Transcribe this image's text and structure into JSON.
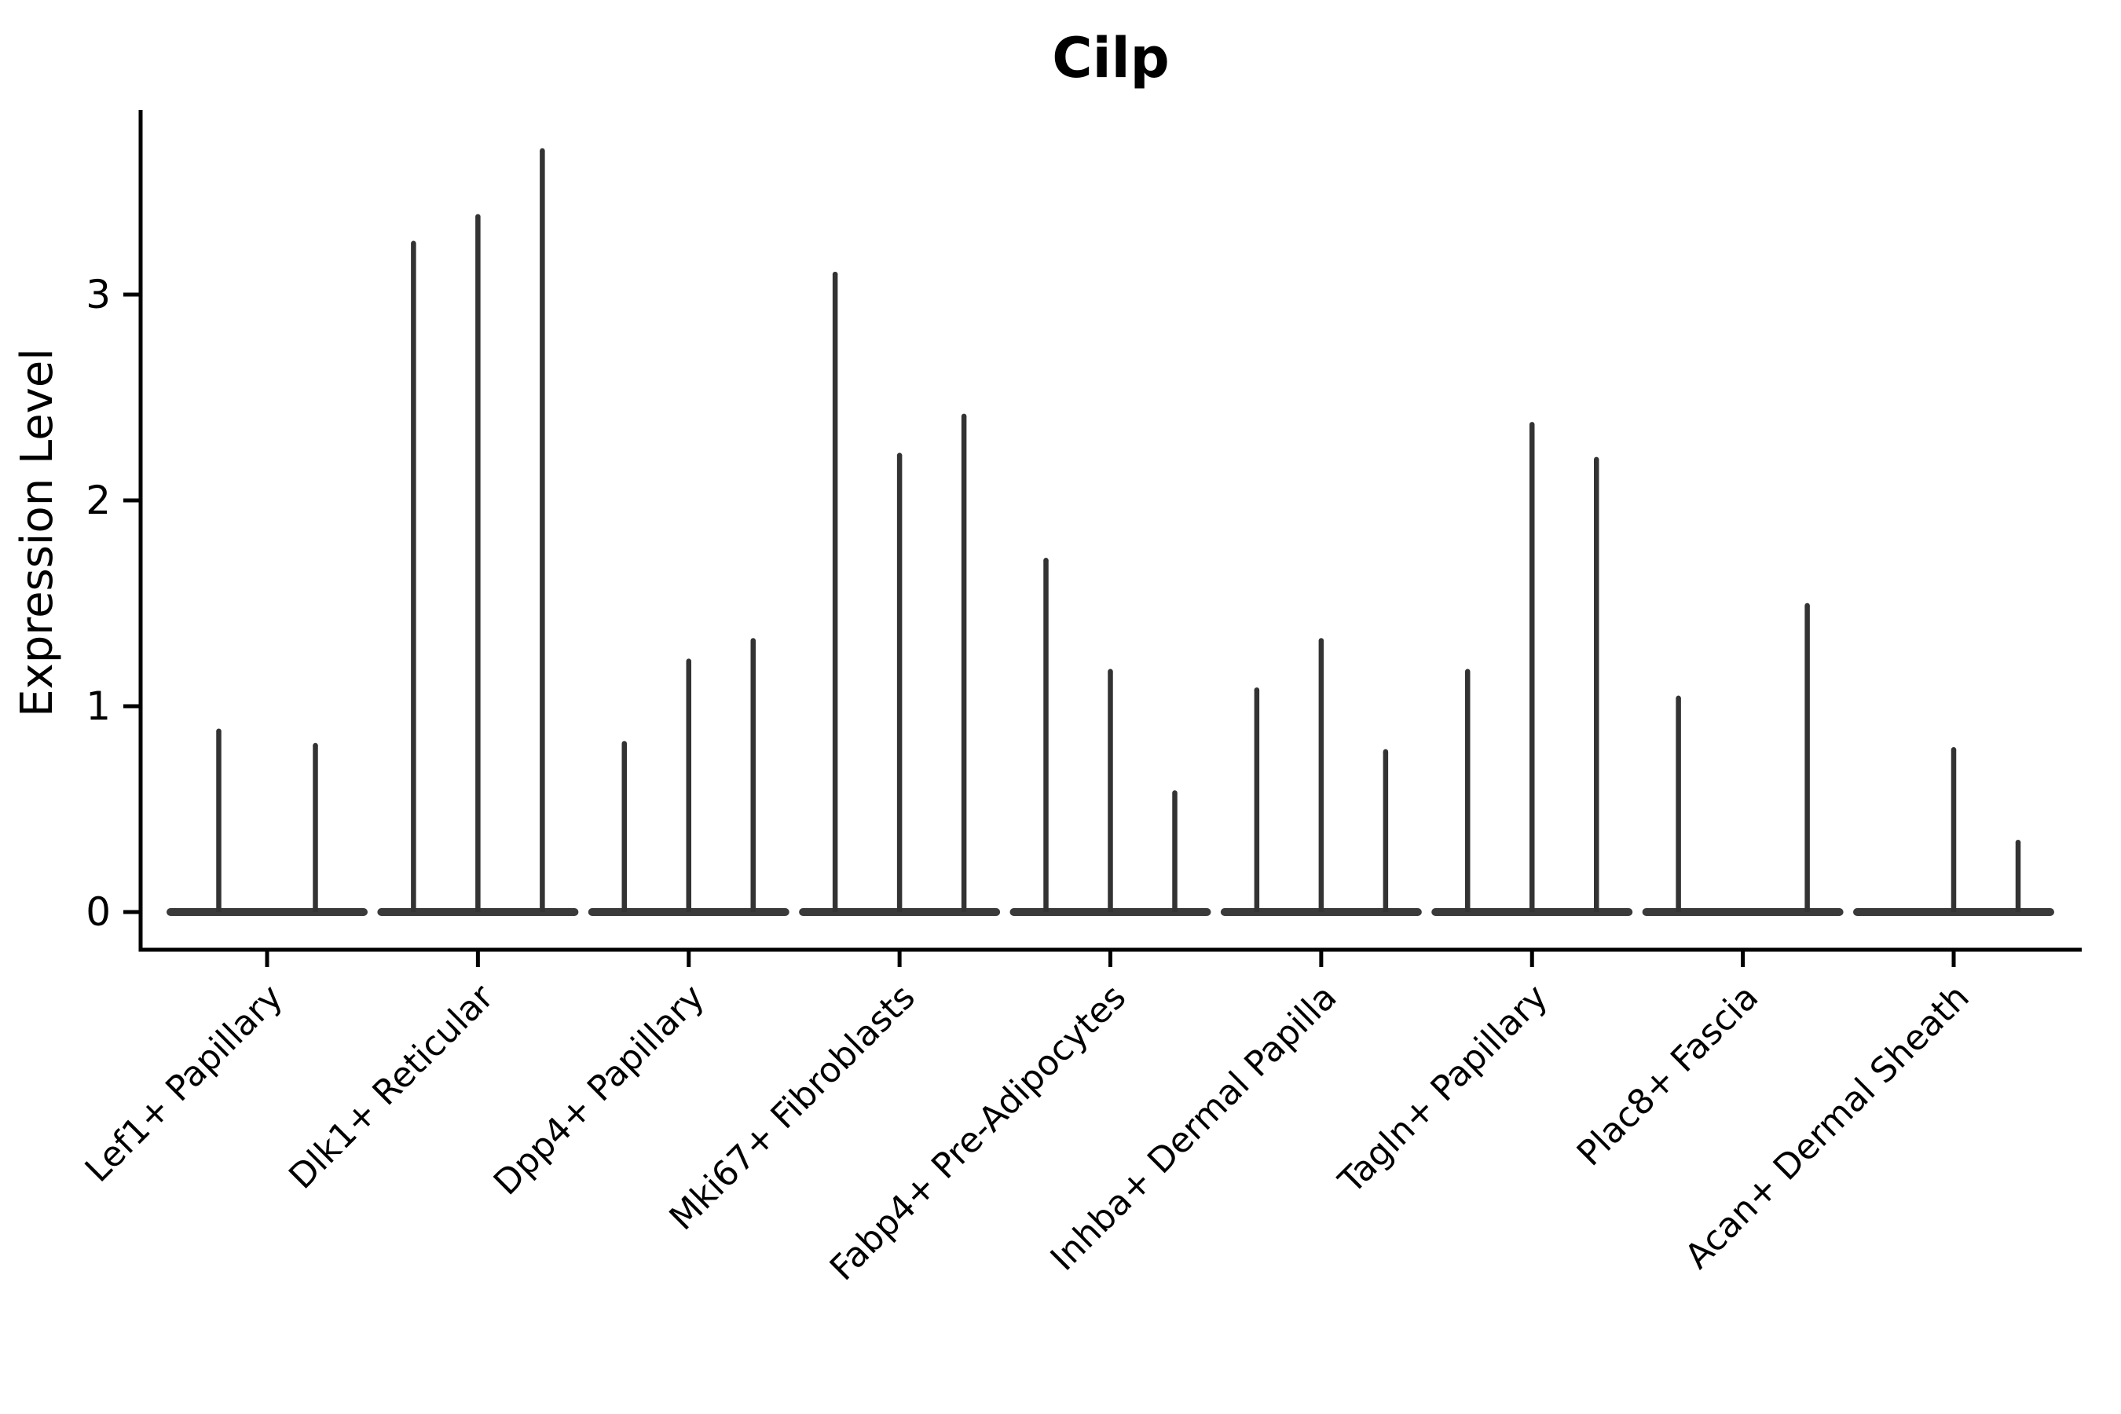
{
  "chart_data": {
    "type": "violin",
    "title": "Cilp",
    "ylabel": "Expression Level",
    "xlabel": "",
    "yticks": [
      0,
      1,
      2,
      3
    ],
    "ylim": [
      -0.18,
      3.9
    ],
    "grid": false,
    "legend": "none",
    "categories": [
      "Lef1+ Papillary",
      "Dlk1+ Reticular",
      "Dpp4+ Papillary",
      "Mki67+ Fibroblasts",
      "Fabp4+ Pre-Adipocytes",
      "Inhba+ Dermal Papilla",
      "Tagln+ Papillary",
      "Plac8+ Fascia",
      "Acan+ Dermal Sheath"
    ],
    "groups": [
      {
        "label": "Lef1+ Papillary",
        "slots": 2,
        "violins": [
          {
            "slot": 0,
            "max": 0.89
          },
          {
            "slot": 1,
            "max": 0.82
          }
        ]
      },
      {
        "label": "Dlk1+ Reticular",
        "slots": 3,
        "violins": [
          {
            "slot": 0,
            "max": 3.26
          },
          {
            "slot": 1,
            "max": 3.39
          },
          {
            "slot": 2,
            "max": 3.71
          }
        ]
      },
      {
        "label": "Dpp4+ Papillary",
        "slots": 3,
        "violins": [
          {
            "slot": 0,
            "max": 0.83
          },
          {
            "slot": 1,
            "max": 1.23
          },
          {
            "slot": 2,
            "max": 1.33
          }
        ]
      },
      {
        "label": "Mki67+ Fibroblasts",
        "slots": 3,
        "violins": [
          {
            "slot": 0,
            "max": 3.11
          },
          {
            "slot": 1,
            "max": 2.23
          },
          {
            "slot": 2,
            "max": 2.42
          }
        ]
      },
      {
        "label": "Fabp4+ Pre-Adipocytes",
        "slots": 3,
        "violins": [
          {
            "slot": 0,
            "max": 1.72
          },
          {
            "slot": 1,
            "max": 1.18
          },
          {
            "slot": 2,
            "max": 0.59
          }
        ]
      },
      {
        "label": "Inhba+ Dermal Papilla",
        "slots": 3,
        "violins": [
          {
            "slot": 0,
            "max": 1.09
          },
          {
            "slot": 1,
            "max": 1.33
          },
          {
            "slot": 2,
            "max": 0.79
          }
        ]
      },
      {
        "label": "Tagln+ Papillary",
        "slots": 3,
        "violins": [
          {
            "slot": 0,
            "max": 1.18
          },
          {
            "slot": 1,
            "max": 2.38
          },
          {
            "slot": 2,
            "max": 2.21
          }
        ]
      },
      {
        "label": "Plac8+ Fascia",
        "slots": 3,
        "violins": [
          {
            "slot": 0,
            "max": 1.05
          },
          {
            "slot": 2,
            "max": 1.5
          }
        ]
      },
      {
        "label": "Acan+ Dermal Sheath",
        "slots": 3,
        "violins": [
          {
            "slot": 1,
            "max": 0.8
          },
          {
            "slot": 2,
            "max": 0.35
          }
        ]
      }
    ],
    "style": {
      "spike_color": "#333333",
      "baseline_color": "#3a3a3a",
      "axis_color": "#000000",
      "background": "#ffffff"
    }
  }
}
